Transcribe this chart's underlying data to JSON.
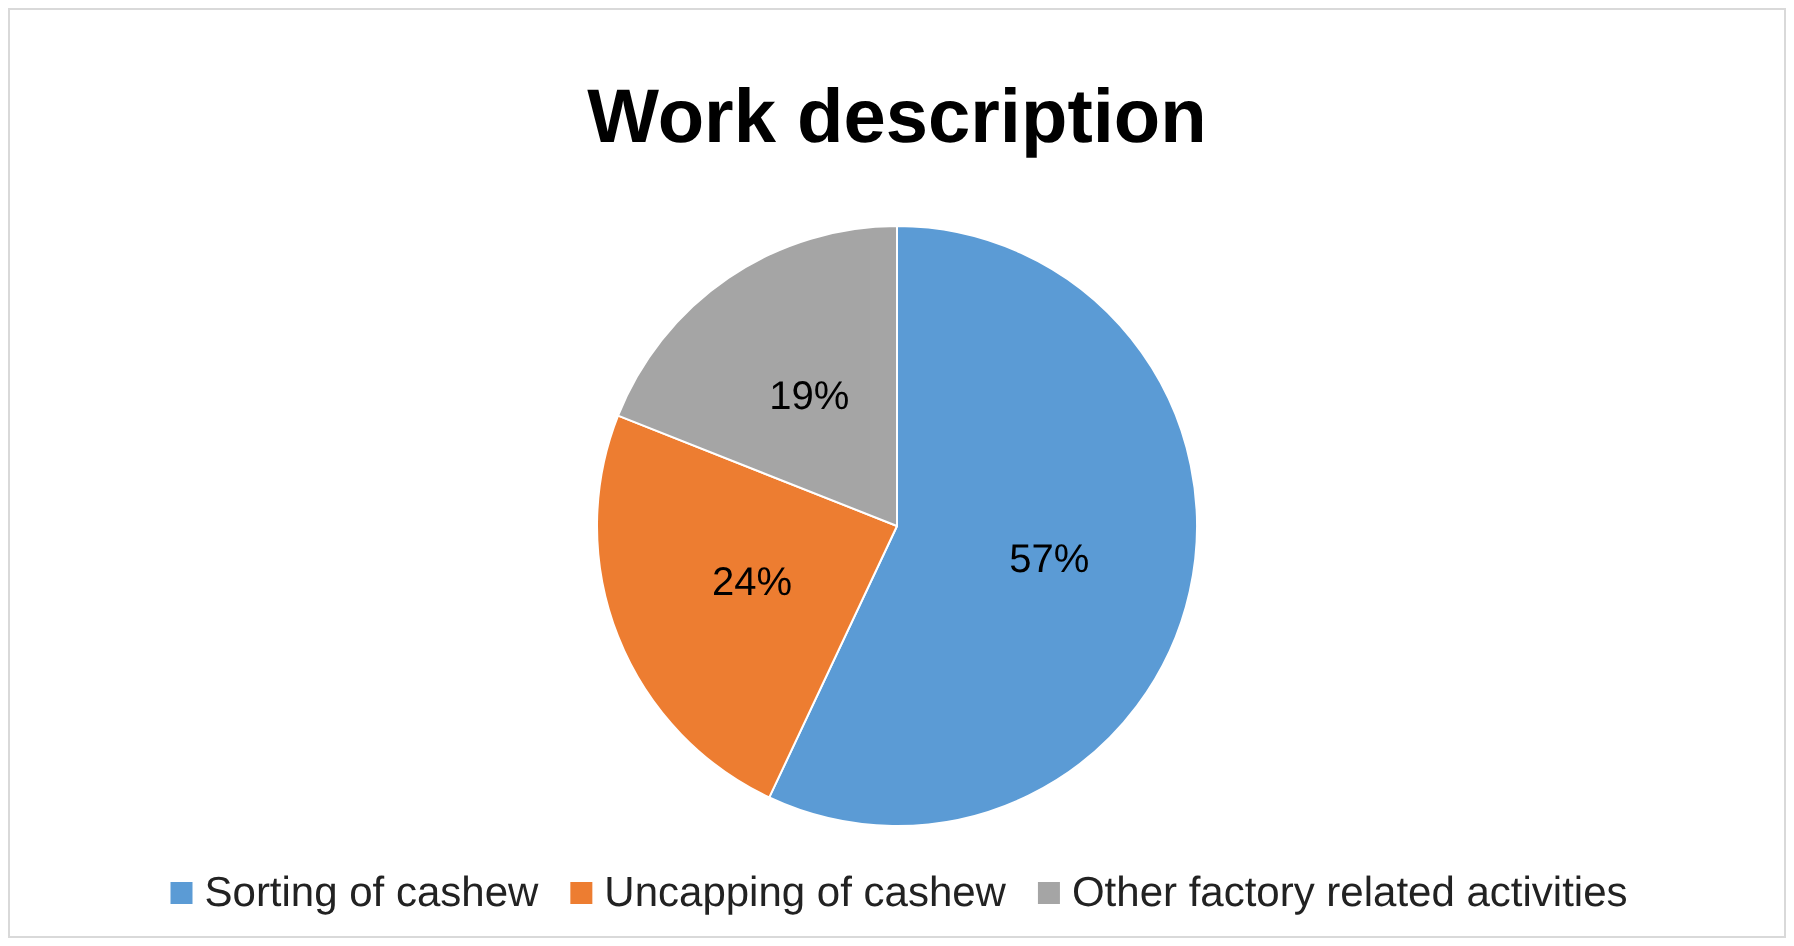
{
  "chart_data": {
    "type": "pie",
    "title": "Work description",
    "categories": [
      "Sorting of cashew",
      "Uncapping of cashew",
      "Other factory related activities"
    ],
    "values": [
      57,
      24,
      19
    ],
    "colors": [
      "#5b9bd5",
      "#ed7d31",
      "#a5a5a5"
    ],
    "value_labels": [
      "57%",
      "24%",
      "19%"
    ],
    "legend": "bottom"
  }
}
